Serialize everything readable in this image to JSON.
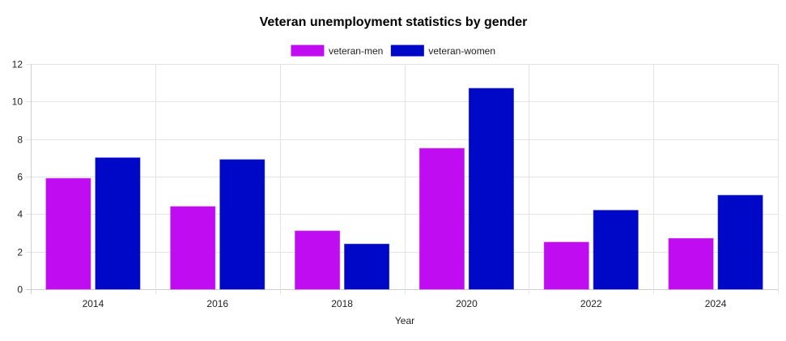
{
  "chart_data": {
    "type": "bar",
    "title": "Veteran unemployment statistics by gender",
    "xlabel": "Year",
    "ylabel": "",
    "categories": [
      "2014",
      "2016",
      "2018",
      "2020",
      "2022",
      "2024"
    ],
    "series": [
      {
        "name": "veteran-men",
        "values": [
          5.9,
          4.4,
          3.1,
          7.5,
          2.5,
          2.7
        ],
        "color": "#c00cf0"
      },
      {
        "name": "veteran-women",
        "values": [
          7.0,
          6.9,
          2.4,
          10.7,
          4.2,
          5.0
        ],
        "color": "#0008c8"
      }
    ],
    "ylim": [
      0,
      12
    ],
    "yticks": [
      0,
      2,
      4,
      6,
      8,
      10,
      12
    ],
    "grid": true,
    "legend_position": "top-center"
  }
}
